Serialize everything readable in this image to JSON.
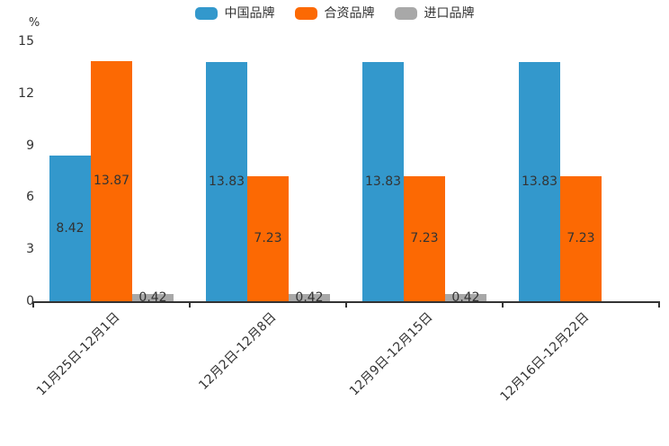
{
  "chart_data": {
    "type": "bar",
    "unit": "%",
    "categories": [
      "11月25日-12月1日",
      "12月2日-12月8日",
      "12月9日-12月15日",
      "12月16日-12月22日"
    ],
    "series": [
      {
        "name": "中国品牌",
        "color": "#3398cc",
        "values": [
          8.42,
          13.83,
          13.83,
          13.83
        ]
      },
      {
        "name": "合资品牌",
        "color": "#fc6903",
        "values": [
          13.87,
          7.23,
          7.23,
          7.23
        ]
      },
      {
        "name": "进口品牌",
        "color": "#a8a8a8",
        "values": [
          0.42,
          0.42,
          0.42,
          0
        ]
      }
    ],
    "ylim": [
      0,
      15
    ],
    "yticks": [
      0,
      3,
      6,
      9,
      12,
      15
    ],
    "grid": false,
    "legend_position": "top",
    "value_label_position": "bar-center",
    "x_tick_rotation": 45,
    "colors": {
      "text": "#333333",
      "axis": "#333333",
      "background": "#ffffff"
    }
  }
}
